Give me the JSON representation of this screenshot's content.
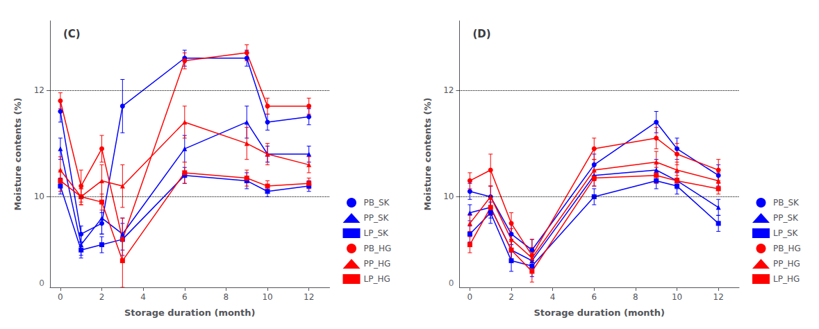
{
  "chart_data": [
    {
      "type": "line",
      "title": "(C)",
      "xlabel": "Storage duration (month)",
      "ylabel": "Moisture contents (%)",
      "x": [
        0,
        1,
        2,
        3,
        6,
        9,
        10,
        12
      ],
      "xlim": [
        -0.5,
        13.0
      ],
      "xticks": [
        0,
        2,
        4,
        6,
        8,
        10,
        12
      ],
      "ylim": [
        8.3,
        13.3
      ],
      "yticks": [
        10,
        12
      ],
      "hlines": [
        10,
        12
      ],
      "annotations": [
        "0"
      ],
      "grid": false,
      "legend": "lower right",
      "series": [
        {
          "name": "PB_SK",
          "color": "#0000FF",
          "marker": "circle",
          "values": [
            11.6,
            9.3,
            9.5,
            11.7,
            12.6,
            12.6,
            11.4,
            11.5
          ],
          "yerr": [
            0.2,
            0.15,
            0.2,
            0.5,
            0.15,
            0.15,
            0.15,
            0.15
          ]
        },
        {
          "name": "PP_SK",
          "color": "#0000FF",
          "marker": "triangle",
          "values": [
            10.9,
            9.1,
            9.6,
            9.3,
            10.9,
            11.4,
            10.8,
            10.8
          ],
          "yerr": [
            0.2,
            0.2,
            0.3,
            0.3,
            0.25,
            0.3,
            0.15,
            0.15
          ]
        },
        {
          "name": "LP_SK",
          "color": "#0000FF",
          "marker": "square",
          "values": [
            10.2,
            9.0,
            9.1,
            9.2,
            10.4,
            10.3,
            10.1,
            10.2
          ],
          "yerr": [
            0.15,
            0.15,
            0.15,
            0.3,
            0.15,
            0.15,
            0.1,
            0.1
          ]
        },
        {
          "name": "PB_HG",
          "color": "#FF0000",
          "marker": "circle",
          "values": [
            11.8,
            10.2,
            10.9,
            9.2,
            12.55,
            12.7,
            11.7,
            11.7
          ],
          "yerr": [
            0.15,
            0.3,
            0.25,
            0.4,
            0.15,
            0.15,
            0.15,
            0.15
          ]
        },
        {
          "name": "PP_HG",
          "color": "#FF0000",
          "marker": "triangle",
          "values": [
            10.5,
            10.0,
            10.3,
            10.2,
            11.4,
            11.0,
            10.8,
            10.6
          ],
          "yerr": [
            0.25,
            0.15,
            0.3,
            0.4,
            0.3,
            0.3,
            0.2,
            0.15
          ]
        },
        {
          "name": "LP_HG",
          "color": "#FF0000",
          "marker": "square",
          "values": [
            10.3,
            10.0,
            9.9,
            8.8,
            10.45,
            10.35,
            10.2,
            10.25
          ],
          "yerr": [
            0.2,
            0.15,
            0.15,
            0.5,
            0.2,
            0.15,
            0.1,
            0.1
          ]
        }
      ]
    },
    {
      "type": "line",
      "title": "(D)",
      "xlabel": "Storage duration (month)",
      "ylabel": "Moisture contents (%)",
      "x": [
        0,
        1,
        2,
        3,
        6,
        9,
        10,
        12
      ],
      "xlim": [
        -0.5,
        13.0
      ],
      "xticks": [
        0,
        2,
        4,
        6,
        8,
        10,
        12
      ],
      "ylim": [
        8.3,
        13.3
      ],
      "yticks": [
        10,
        12
      ],
      "hlines": [
        10,
        12
      ],
      "annotations": [
        "0"
      ],
      "grid": false,
      "legend": "lower right",
      "series": [
        {
          "name": "PB_SK",
          "color": "#0000FF",
          "marker": "circle",
          "values": [
            10.1,
            10.0,
            9.3,
            9.0,
            10.6,
            11.4,
            10.9,
            10.4
          ],
          "yerr": [
            0.15,
            0.2,
            0.2,
            0.2,
            0.2,
            0.2,
            0.2,
            0.2
          ]
        },
        {
          "name": "PP_SK",
          "color": "#0000FF",
          "marker": "triangle",
          "values": [
            9.7,
            9.8,
            9.0,
            8.8,
            10.4,
            10.5,
            10.3,
            9.8
          ],
          "yerr": [
            0.15,
            0.2,
            0.2,
            0.2,
            0.2,
            0.2,
            0.15,
            0.15
          ]
        },
        {
          "name": "LP_SK",
          "color": "#0000FF",
          "marker": "square",
          "values": [
            9.3,
            9.7,
            8.8,
            8.7,
            10.0,
            10.3,
            10.2,
            9.5
          ],
          "yerr": [
            0.15,
            0.2,
            0.2,
            0.2,
            0.15,
            0.15,
            0.15,
            0.15
          ]
        },
        {
          "name": "PB_HG",
          "color": "#FF0000",
          "marker": "circle",
          "values": [
            10.3,
            10.5,
            9.5,
            8.9,
            10.9,
            11.1,
            10.8,
            10.5
          ],
          "yerr": [
            0.15,
            0.3,
            0.2,
            0.3,
            0.2,
            0.2,
            0.2,
            0.2
          ]
        },
        {
          "name": "PP_HG",
          "color": "#FF0000",
          "marker": "triangle",
          "values": [
            9.5,
            10.0,
            9.2,
            8.85,
            10.5,
            10.65,
            10.5,
            10.3
          ],
          "yerr": [
            0.15,
            0.2,
            0.2,
            0.2,
            0.2,
            0.2,
            0.15,
            0.15
          ]
        },
        {
          "name": "LP_HG",
          "color": "#FF0000",
          "marker": "square",
          "values": [
            9.1,
            9.8,
            9.0,
            8.6,
            10.35,
            10.4,
            10.3,
            10.15
          ],
          "yerr": [
            0.15,
            0.15,
            0.2,
            0.2,
            0.15,
            0.15,
            0.1,
            0.1
          ]
        }
      ]
    }
  ]
}
